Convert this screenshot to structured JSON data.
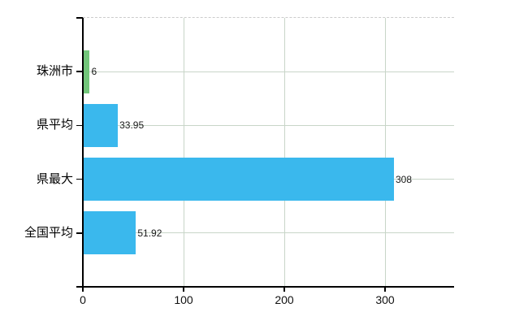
{
  "chart_data": {
    "type": "bar",
    "orientation": "horizontal",
    "categories": [
      "珠洲市",
      "県平均",
      "県最大",
      "全国平均"
    ],
    "values": [
      6,
      33.95,
      308,
      51.92
    ],
    "value_labels": [
      "6",
      "33.95",
      "308",
      "51.92"
    ],
    "bar_colors": [
      "#72c67a",
      "#3ab8ed",
      "#3ab8ed",
      "#3ab8ed"
    ],
    "xticks": [
      0,
      100,
      200,
      300
    ],
    "xtick_labels": [
      "0",
      "100",
      "200",
      "300"
    ],
    "xlim": [
      0,
      368.5
    ],
    "grid": true,
    "legend": "none"
  },
  "colors": {
    "background": "#ffffff",
    "grid": "#c8d5c8",
    "dashed_border": "#cccccc",
    "axis": "#000000",
    "bar_blue": "#3ab8ed",
    "bar_green": "#72c67a",
    "text": "#000000"
  }
}
